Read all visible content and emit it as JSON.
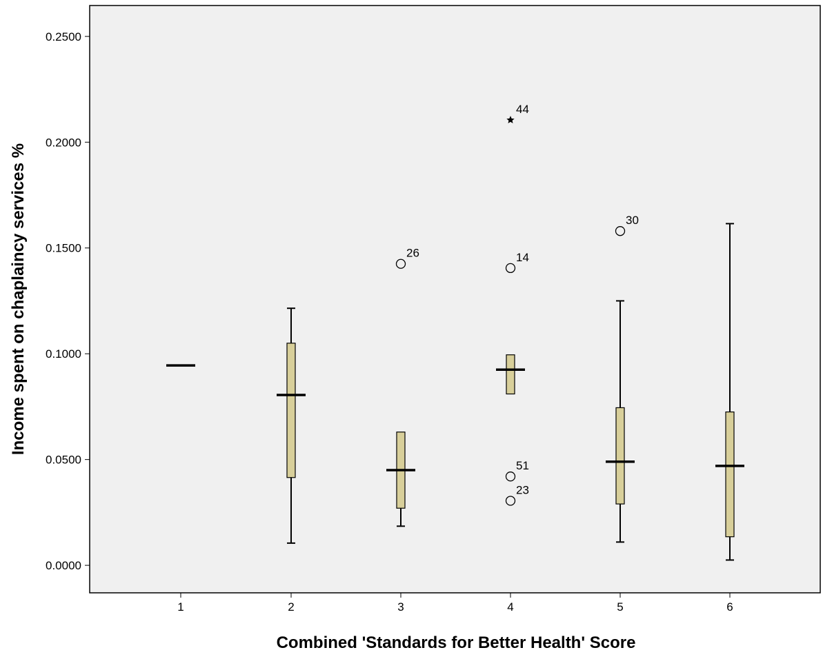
{
  "chart_data": {
    "type": "boxplot",
    "title": "",
    "xlabel": "Combined 'Standards for Better Health' Score",
    "ylabel": "Income spent on chaplaincy services %",
    "categories": [
      "1",
      "2",
      "3",
      "4",
      "5",
      "6"
    ],
    "ylim": [
      -0.013,
      0.2646
    ],
    "yticks": [
      0.0,
      0.05,
      0.1,
      0.15,
      0.2,
      0.25
    ],
    "ytick_labels": [
      "0.0000",
      "0.0500",
      "0.1000",
      "0.1500",
      "0.2000",
      "0.2500"
    ],
    "grid": false,
    "colors": {
      "plot_background": "#f0f0f0",
      "box_fill": "#d8cf9a",
      "box_stroke": "#000000",
      "frame": "#000000"
    },
    "boxes": [
      {
        "category": "1",
        "min": 0.0945,
        "q1": 0.0945,
        "median": 0.0945,
        "q3": 0.0945,
        "max": 0.0945
      },
      {
        "category": "2",
        "min": 0.0105,
        "q1": 0.0415,
        "median": 0.0805,
        "q3": 0.105,
        "max": 0.1215
      },
      {
        "category": "3",
        "min": 0.0185,
        "q1": 0.027,
        "median": 0.045,
        "q3": 0.063,
        "max": 0.063
      },
      {
        "category": "4",
        "min": 0.081,
        "q1": 0.081,
        "median": 0.0925,
        "q3": 0.0995,
        "max": 0.0995
      },
      {
        "category": "5",
        "min": 0.011,
        "q1": 0.029,
        "median": 0.049,
        "q3": 0.0745,
        "max": 0.125
      },
      {
        "category": "6",
        "min": 0.0025,
        "q1": 0.0135,
        "median": 0.047,
        "q3": 0.0725,
        "max": 0.1615
      }
    ],
    "outliers": [
      {
        "category": "3",
        "value": 0.1425,
        "label": "26",
        "marker": "circle"
      },
      {
        "category": "4",
        "value": 0.2105,
        "label": "44",
        "marker": "star"
      },
      {
        "category": "4",
        "value": 0.1405,
        "label": "14",
        "marker": "circle"
      },
      {
        "category": "4",
        "value": 0.042,
        "label": "51",
        "marker": "circle"
      },
      {
        "category": "4",
        "value": 0.0305,
        "label": "23",
        "marker": "circle"
      },
      {
        "category": "5",
        "value": 0.158,
        "label": "30",
        "marker": "circle"
      }
    ]
  }
}
